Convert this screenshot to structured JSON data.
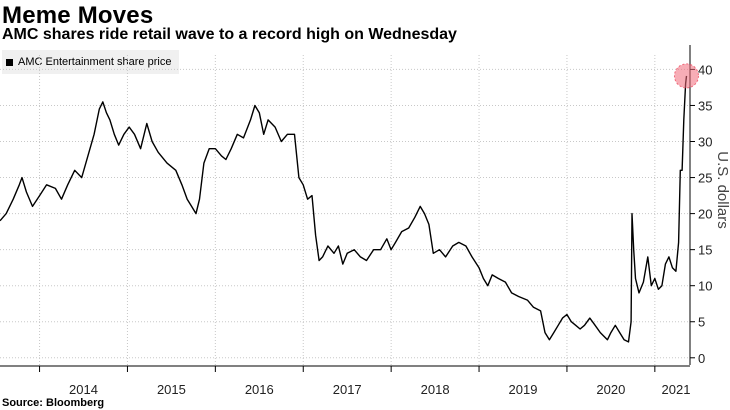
{
  "header": {
    "title": "Meme Moves",
    "subtitle": "AMC shares ride retail wave to a record high on Wednesday"
  },
  "footer": {
    "source": "Source: Bloomberg"
  },
  "chart_data": {
    "type": "line",
    "title": "Meme Moves",
    "subtitle": "AMC shares ride retail wave to a record high on Wednesday",
    "xlabel": "",
    "ylabel": "U.S. dollars",
    "xlim": [
      2013.55,
      2021.4
    ],
    "ylim": [
      -1,
      42
    ],
    "yticks": [
      0,
      5,
      10,
      15,
      20,
      25,
      30,
      35,
      40
    ],
    "xticks": [
      {
        "x": 2014.0,
        "label": "2014"
      },
      {
        "x": 2015.0,
        "label": "2015"
      },
      {
        "x": 2016.0,
        "label": "2016"
      },
      {
        "x": 2017.0,
        "label": "2017"
      },
      {
        "x": 2018.0,
        "label": "2018"
      },
      {
        "x": 2019.0,
        "label": "2019"
      },
      {
        "x": 2020.0,
        "label": "2020"
      },
      {
        "x": 2021.0,
        "label": "2021"
      }
    ],
    "grid": true,
    "y_axis_position": "right",
    "legend_position": "top-left",
    "highlight": {
      "x": 2021.36,
      "y": 39.1,
      "color": "#f0697a"
    },
    "line_color": "#000000",
    "series": [
      {
        "name": "AMC Entertainment share price",
        "points": [
          [
            2013.55,
            19
          ],
          [
            2013.62,
            20
          ],
          [
            2013.7,
            22
          ],
          [
            2013.77,
            24
          ],
          [
            2013.8,
            25
          ],
          [
            2013.85,
            23
          ],
          [
            2013.92,
            21
          ],
          [
            2014.0,
            22.5
          ],
          [
            2014.08,
            24
          ],
          [
            2014.18,
            23.5
          ],
          [
            2014.25,
            22
          ],
          [
            2014.32,
            24
          ],
          [
            2014.4,
            26
          ],
          [
            2014.48,
            25
          ],
          [
            2014.55,
            28
          ],
          [
            2014.62,
            31
          ],
          [
            2014.68,
            34.5
          ],
          [
            2014.72,
            35.5
          ],
          [
            2014.76,
            34
          ],
          [
            2014.8,
            33
          ],
          [
            2014.85,
            31
          ],
          [
            2014.9,
            29.5
          ],
          [
            2014.96,
            31
          ],
          [
            2015.02,
            32
          ],
          [
            2015.08,
            31
          ],
          [
            2015.15,
            29
          ],
          [
            2015.22,
            32.5
          ],
          [
            2015.28,
            30
          ],
          [
            2015.35,
            28.5
          ],
          [
            2015.45,
            27
          ],
          [
            2015.55,
            26
          ],
          [
            2015.62,
            24
          ],
          [
            2015.68,
            22
          ],
          [
            2015.73,
            21
          ],
          [
            2015.78,
            20
          ],
          [
            2015.82,
            22
          ],
          [
            2015.87,
            27
          ],
          [
            2015.93,
            29
          ],
          [
            2016.0,
            29
          ],
          [
            2016.07,
            28
          ],
          [
            2016.12,
            27.5
          ],
          [
            2016.18,
            29
          ],
          [
            2016.25,
            31
          ],
          [
            2016.32,
            30.5
          ],
          [
            2016.4,
            33
          ],
          [
            2016.45,
            35
          ],
          [
            2016.5,
            34
          ],
          [
            2016.55,
            31
          ],
          [
            2016.6,
            33
          ],
          [
            2016.68,
            32
          ],
          [
            2016.75,
            30
          ],
          [
            2016.82,
            31
          ],
          [
            2016.9,
            31
          ],
          [
            2016.95,
            25
          ],
          [
            2017.0,
            24
          ],
          [
            2017.05,
            22
          ],
          [
            2017.1,
            22.5
          ],
          [
            2017.14,
            17
          ],
          [
            2017.18,
            13.5
          ],
          [
            2017.22,
            14
          ],
          [
            2017.28,
            15.5
          ],
          [
            2017.35,
            14.5
          ],
          [
            2017.4,
            15.5
          ],
          [
            2017.45,
            13
          ],
          [
            2017.5,
            14.5
          ],
          [
            2017.58,
            15
          ],
          [
            2017.65,
            14
          ],
          [
            2017.72,
            13.5
          ],
          [
            2017.8,
            15
          ],
          [
            2017.88,
            15
          ],
          [
            2017.95,
            16.5
          ],
          [
            2018.0,
            15
          ],
          [
            2018.05,
            16
          ],
          [
            2018.12,
            17.5
          ],
          [
            2018.2,
            18
          ],
          [
            2018.27,
            19.5
          ],
          [
            2018.33,
            21
          ],
          [
            2018.38,
            20
          ],
          [
            2018.43,
            18.5
          ],
          [
            2018.48,
            14.5
          ],
          [
            2018.55,
            15
          ],
          [
            2018.62,
            14
          ],
          [
            2018.7,
            15.5
          ],
          [
            2018.77,
            16
          ],
          [
            2018.85,
            15.5
          ],
          [
            2018.92,
            14
          ],
          [
            2019.0,
            12.5
          ],
          [
            2019.05,
            11
          ],
          [
            2019.1,
            10
          ],
          [
            2019.15,
            11.5
          ],
          [
            2019.22,
            11
          ],
          [
            2019.3,
            10.5
          ],
          [
            2019.37,
            9
          ],
          [
            2019.45,
            8.5
          ],
          [
            2019.55,
            8
          ],
          [
            2019.62,
            7
          ],
          [
            2019.7,
            6.5
          ],
          [
            2019.75,
            3.5
          ],
          [
            2019.8,
            2.5
          ],
          [
            2019.85,
            3.5
          ],
          [
            2019.9,
            4.5
          ],
          [
            2019.95,
            5.5
          ],
          [
            2020.0,
            6
          ],
          [
            2020.05,
            5
          ],
          [
            2020.1,
            4.5
          ],
          [
            2020.15,
            4
          ],
          [
            2020.2,
            4.5
          ],
          [
            2020.26,
            5.5
          ],
          [
            2020.32,
            4.5
          ],
          [
            2020.38,
            3.5
          ],
          [
            2020.42,
            3
          ],
          [
            2020.46,
            2.5
          ],
          [
            2020.5,
            3.5
          ],
          [
            2020.55,
            4.5
          ],
          [
            2020.6,
            3.5
          ],
          [
            2020.65,
            2.5
          ],
          [
            2020.7,
            2.2
          ],
          [
            2020.73,
            5
          ],
          [
            2020.74,
            20
          ],
          [
            2020.76,
            15
          ],
          [
            2020.78,
            11
          ],
          [
            2020.82,
            9
          ],
          [
            2020.87,
            10.5
          ],
          [
            2020.92,
            14
          ],
          [
            2020.96,
            10
          ],
          [
            2021.0,
            11
          ],
          [
            2021.04,
            9.5
          ],
          [
            2021.08,
            10
          ],
          [
            2021.12,
            13
          ],
          [
            2021.16,
            14
          ],
          [
            2021.2,
            12.5
          ],
          [
            2021.24,
            12
          ],
          [
            2021.27,
            16
          ],
          [
            2021.29,
            26
          ],
          [
            2021.31,
            26
          ],
          [
            2021.33,
            33
          ],
          [
            2021.35,
            38
          ],
          [
            2021.36,
            39.1
          ]
        ]
      }
    ]
  }
}
